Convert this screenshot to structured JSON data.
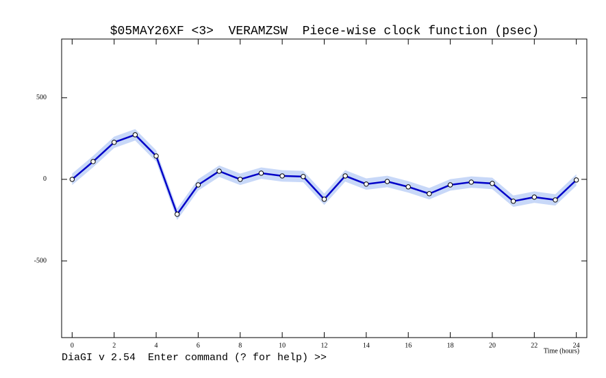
{
  "chart_data": {
    "type": "line",
    "title": "$05MAY26XF <3>  VERAMZSW  Piece-wise clock function (psec)",
    "x_label": "Time (hours)",
    "status_line": "DiaGI v 2.54  Enter command (? for help) >>",
    "x": [
      0,
      1,
      2,
      3,
      4,
      5,
      6,
      7,
      8,
      9,
      10,
      11,
      12,
      13,
      14,
      15,
      16,
      17,
      18,
      19,
      20,
      21,
      22,
      23,
      24
    ],
    "series": [
      {
        "color": "#0000c8",
        "band_color": "#c8d8f8",
        "values": [
          0,
          109,
          227,
          273,
          143,
          -214,
          -34,
          50,
          0,
          38,
          21,
          17,
          -122,
          21,
          -29,
          -13,
          -46,
          -88,
          -34,
          -17,
          -25,
          -134,
          -109,
          -126,
          -4
        ],
        "errors": [
          35,
          35,
          35,
          35,
          35,
          35,
          35,
          35,
          35,
          35,
          35,
          35,
          35,
          35,
          35,
          35,
          35,
          35,
          35,
          35,
          35,
          35,
          35,
          35,
          35
        ]
      }
    ],
    "xlim": [
      -0.5,
      24.5
    ],
    "ylim": [
      -970,
      860
    ],
    "xticks": [
      0,
      2,
      4,
      6,
      8,
      10,
      12,
      14,
      16,
      18,
      20,
      22,
      24
    ],
    "yticks": [
      -500,
      0,
      500
    ]
  }
}
